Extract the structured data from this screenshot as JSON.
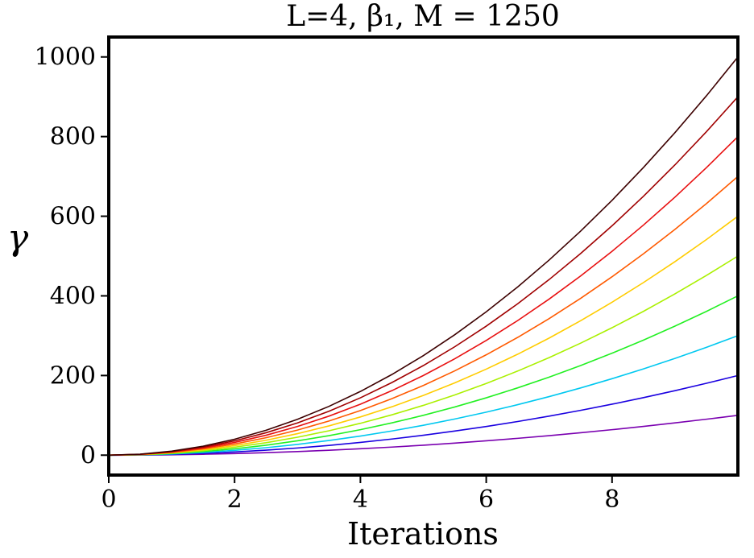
{
  "chart_data": {
    "type": "line",
    "title": "L=4, β₁, M = 1250",
    "xlabel": "Iterations",
    "ylabel": "γ",
    "xlim": [
      0,
      10
    ],
    "ylim": [
      -50,
      1050
    ],
    "grid": false,
    "xticks": [
      0,
      2,
      4,
      6,
      8
    ],
    "yticks": [
      0,
      200,
      400,
      600,
      800,
      1000
    ],
    "x": [
      0,
      0.5,
      1,
      1.5,
      2,
      2.5,
      3,
      3.5,
      4,
      4.5,
      5,
      5.5,
      6,
      6.5,
      7,
      7.5,
      8,
      8.5,
      9,
      9.5,
      10
    ],
    "series": [
      {
        "color": "#7a00b0",
        "values": [
          0,
          0.25,
          1,
          2.25,
          4,
          6.25,
          9,
          12.25,
          16,
          20.25,
          25,
          30.25,
          36,
          42.25,
          49,
          56.25,
          64,
          72.25,
          81,
          90.25,
          100
        ]
      },
      {
        "color": "#1a00e0",
        "values": [
          0,
          0.5,
          2,
          4.5,
          8,
          12.5,
          18,
          24.5,
          32,
          40.5,
          50,
          60.5,
          72,
          84.5,
          98,
          112.5,
          128,
          144.5,
          162,
          180.5,
          200
        ]
      },
      {
        "color": "#00c8f0",
        "values": [
          0,
          0.75,
          3,
          6.75,
          12,
          18.75,
          27,
          36.75,
          48,
          60.75,
          75,
          90.75,
          108,
          126.75,
          147,
          168.75,
          192,
          216.75,
          243,
          270.75,
          300
        ]
      },
      {
        "color": "#22f022",
        "values": [
          0,
          1,
          4,
          9,
          16,
          25,
          36,
          49,
          64,
          81,
          100,
          121,
          144,
          169,
          196,
          225,
          256,
          289,
          324,
          361,
          400
        ]
      },
      {
        "color": "#aaf000",
        "values": [
          0,
          1.25,
          5,
          11.25,
          20,
          31.25,
          45,
          61.25,
          80,
          101.25,
          125,
          151.25,
          180,
          211.25,
          245,
          281.25,
          320,
          361.25,
          405,
          451.25,
          500
        ]
      },
      {
        "color": "#ffcc00",
        "values": [
          0,
          1.5,
          6,
          13.5,
          24,
          37.5,
          54,
          73.5,
          96,
          121.5,
          150,
          181.5,
          216,
          253.5,
          294,
          337.5,
          384,
          433.5,
          486,
          541.5,
          600
        ]
      },
      {
        "color": "#ff5a00",
        "values": [
          0,
          1.75,
          7,
          15.75,
          28,
          43.75,
          63,
          85.75,
          112,
          141.75,
          175,
          211.75,
          252,
          295.75,
          343,
          393.75,
          448,
          505.75,
          567,
          631.75,
          700
        ]
      },
      {
        "color": "#e81010",
        "values": [
          0,
          2,
          8,
          18,
          32,
          50,
          72,
          98,
          128,
          162,
          200,
          242,
          288,
          338,
          392,
          450,
          512,
          578,
          648,
          722,
          800
        ]
      },
      {
        "color": "#a00000",
        "values": [
          0,
          2.25,
          9,
          20.25,
          36,
          56.25,
          81,
          110.25,
          144,
          182.25,
          225,
          272.25,
          324,
          380.25,
          441,
          506.25,
          576,
          650.25,
          729,
          812.25,
          900
        ]
      },
      {
        "color": "#3d0000",
        "values": [
          0,
          2.5,
          10,
          22.5,
          40,
          62.5,
          90,
          122.5,
          160,
          202.5,
          250,
          302.5,
          360,
          422.5,
          490,
          562.5,
          640,
          722.5,
          810,
          902.5,
          1000
        ]
      }
    ]
  }
}
